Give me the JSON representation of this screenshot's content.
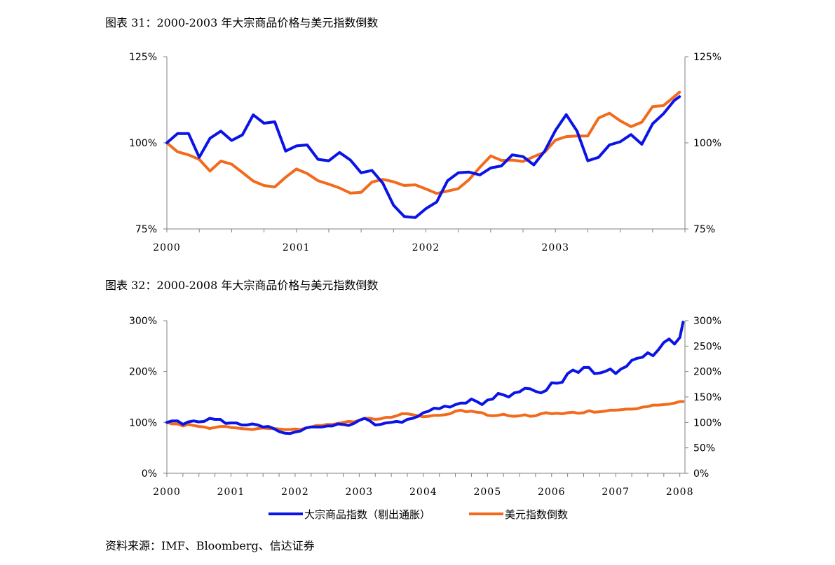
{
  "captions": {
    "chart1": "图表 31：2000-2003 年大宗商品价格与美元指数倒数",
    "chart2": "图表 32：2000-2008 年大宗商品价格与美元指数倒数"
  },
  "source": "资料来源：IMF、Bloomberg、信达证券",
  "colors": {
    "commodity": "#0a14e6",
    "usd": "#f26b1d",
    "axis": "#808080"
  },
  "legend": {
    "commodity": "大宗商品指数（剔出通胀）",
    "usd": "美元指数倒数"
  },
  "chart_data": [
    {
      "type": "line",
      "title": "图表 31：2000-2003 年大宗商品价格与美元指数倒数",
      "x_range": [
        2000,
        2004
      ],
      "x_tick_labels": [
        "2000",
        "2001",
        "2002",
        "2003"
      ],
      "ylim_left": [
        75,
        125
      ],
      "ylim_right": [
        75,
        125
      ],
      "y_tick_labels_left": [
        "75%",
        "100%",
        "125%"
      ],
      "y_tick_labels_right": [
        "75%",
        "100%",
        "125%"
      ],
      "grid": false,
      "series": [
        {
          "name": "大宗商品指数（剔出通胀）",
          "color": "#0a14e6",
          "x": [
            2000.0,
            2000.083,
            2000.167,
            2000.25,
            2000.333,
            2000.417,
            2000.5,
            2000.583,
            2000.667,
            2000.75,
            2000.833,
            2000.917,
            2001.0,
            2001.083,
            2001.167,
            2001.25,
            2001.333,
            2001.417,
            2001.5,
            2001.583,
            2001.667,
            2001.75,
            2001.833,
            2001.917,
            2002.0,
            2002.083,
            2002.167,
            2002.25,
            2002.333,
            2002.417,
            2002.5,
            2002.583,
            2002.667,
            2002.75,
            2002.833,
            2002.917,
            2003.0,
            2003.083,
            2003.167,
            2003.25,
            2003.333,
            2003.417,
            2003.5,
            2003.583,
            2003.667,
            2003.75,
            2003.833,
            2003.917,
            2003.958
          ],
          "values": [
            100.0,
            102.7,
            102.7,
            95.8,
            101.3,
            103.4,
            100.7,
            102.3,
            108.1,
            105.7,
            106.1,
            97.6,
            99.1,
            99.4,
            95.2,
            94.8,
            97.2,
            95.0,
            91.3,
            92.0,
            88.3,
            81.9,
            78.6,
            78.3,
            80.9,
            82.8,
            89.0,
            91.3,
            91.5,
            90.7,
            92.7,
            93.3,
            96.5,
            96.0,
            93.6,
            97.6,
            103.6,
            108.2,
            103.4,
            94.8,
            95.8,
            99.4,
            100.3,
            102.4,
            99.6,
            105.5,
            108.4,
            112.3,
            113.4
          ]
        },
        {
          "name": "美元指数倒数",
          "color": "#f26b1d",
          "x": [
            2000.0,
            2000.083,
            2000.167,
            2000.25,
            2000.333,
            2000.417,
            2000.5,
            2000.583,
            2000.667,
            2000.75,
            2000.833,
            2000.917,
            2001.0,
            2001.083,
            2001.167,
            2001.25,
            2001.333,
            2001.417,
            2001.5,
            2001.583,
            2001.667,
            2001.75,
            2001.833,
            2001.917,
            2002.0,
            2002.083,
            2002.167,
            2002.25,
            2002.333,
            2002.417,
            2002.5,
            2002.583,
            2002.667,
            2002.75,
            2002.833,
            2002.917,
            2003.0,
            2003.083,
            2003.167,
            2003.25,
            2003.333,
            2003.417,
            2003.5,
            2003.583,
            2003.667,
            2003.75,
            2003.833,
            2003.917,
            2003.958
          ],
          "values": [
            100.0,
            97.4,
            96.5,
            95.2,
            91.8,
            94.7,
            93.8,
            91.4,
            88.9,
            87.6,
            87.2,
            90.0,
            92.4,
            91.1,
            89.0,
            88.0,
            86.9,
            85.4,
            85.6,
            88.6,
            89.4,
            88.7,
            87.6,
            87.8,
            86.6,
            85.3,
            86.0,
            86.7,
            89.3,
            92.9,
            96.2,
            94.9,
            95.0,
            94.6,
            96.0,
            97.3,
            100.8,
            101.8,
            102.0,
            102.0,
            107.2,
            108.6,
            106.4,
            104.7,
            106.0,
            110.5,
            110.8,
            113.4,
            114.7
          ]
        }
      ]
    },
    {
      "type": "line",
      "title": "图表 32：2000-2008 年大宗商品价格与美元指数倒数",
      "x_range": [
        2000,
        2008.08
      ],
      "x_tick_labels": [
        "2000",
        "2001",
        "2002",
        "2003",
        "2004",
        "2005",
        "2006",
        "2007",
        "2008"
      ],
      "ylim_left": [
        0,
        300
      ],
      "ylim_right": [
        0,
        300
      ],
      "y_tick_labels_left": [
        "0%",
        "100%",
        "200%",
        "300%"
      ],
      "y_tick_labels_right": [
        "0%",
        "50%",
        "100%",
        "150%",
        "200%",
        "250%",
        "300%"
      ],
      "grid": false,
      "legend_position": "bottom",
      "series": [
        {
          "name": "大宗商品指数（剔出通胀）",
          "color": "#0a14e6",
          "x": [
            2000.0,
            2000.083,
            2000.167,
            2000.25,
            2000.333,
            2000.417,
            2000.5,
            2000.583,
            2000.667,
            2000.75,
            2000.833,
            2000.917,
            2001.0,
            2001.083,
            2001.167,
            2001.25,
            2001.333,
            2001.417,
            2001.5,
            2001.583,
            2001.667,
            2001.75,
            2001.833,
            2001.917,
            2002.0,
            2002.083,
            2002.167,
            2002.25,
            2002.333,
            2002.417,
            2002.5,
            2002.583,
            2002.667,
            2002.75,
            2002.833,
            2002.917,
            2003.0,
            2003.083,
            2003.167,
            2003.25,
            2003.333,
            2003.417,
            2003.5,
            2003.583,
            2003.667,
            2003.75,
            2003.833,
            2003.917,
            2004.0,
            2004.083,
            2004.167,
            2004.25,
            2004.333,
            2004.417,
            2004.5,
            2004.583,
            2004.667,
            2004.75,
            2004.833,
            2004.917,
            2005.0,
            2005.083,
            2005.167,
            2005.25,
            2005.333,
            2005.417,
            2005.5,
            2005.583,
            2005.667,
            2005.75,
            2005.833,
            2005.917,
            2006.0,
            2006.083,
            2006.167,
            2006.25,
            2006.333,
            2006.417,
            2006.5,
            2006.583,
            2006.667,
            2006.75,
            2006.833,
            2006.917,
            2007.0,
            2007.083,
            2007.167,
            2007.25,
            2007.333,
            2007.417,
            2007.5,
            2007.583,
            2007.667,
            2007.75,
            2007.833,
            2007.917,
            2008.0,
            2008.05
          ],
          "values": [
            100,
            103,
            103,
            96,
            101,
            103,
            101,
            102,
            108,
            106,
            106,
            98,
            99,
            99,
            95,
            95,
            97,
            95,
            91,
            92,
            88,
            82,
            79,
            78,
            81,
            83,
            89,
            91,
            91,
            91,
            93,
            93,
            97,
            96,
            94,
            98,
            104,
            108,
            103,
            95,
            96,
            99,
            100,
            102,
            100,
            106,
            108,
            112,
            119,
            122,
            128,
            127,
            132,
            130,
            135,
            138,
            138,
            146,
            141,
            135,
            144,
            146,
            157,
            154,
            150,
            158,
            160,
            167,
            166,
            161,
            158,
            163,
            178,
            177,
            179,
            196,
            203,
            198,
            208,
            208,
            196,
            197,
            200,
            205,
            196,
            205,
            210,
            222,
            226,
            228,
            237,
            231,
            243,
            257,
            264,
            254,
            267,
            297
          ]
        },
        {
          "name": "美元指数倒数",
          "color": "#f26b1d",
          "x": [
            2000.0,
            2000.083,
            2000.167,
            2000.25,
            2000.333,
            2000.417,
            2000.5,
            2000.583,
            2000.667,
            2000.75,
            2000.833,
            2000.917,
            2001.0,
            2001.083,
            2001.167,
            2001.25,
            2001.333,
            2001.417,
            2001.5,
            2001.583,
            2001.667,
            2001.75,
            2001.833,
            2001.917,
            2002.0,
            2002.083,
            2002.167,
            2002.25,
            2002.333,
            2002.417,
            2002.5,
            2002.583,
            2002.667,
            2002.75,
            2002.833,
            2002.917,
            2003.0,
            2003.083,
            2003.167,
            2003.25,
            2003.333,
            2003.417,
            2003.5,
            2003.583,
            2003.667,
            2003.75,
            2003.833,
            2003.917,
            2004.0,
            2004.083,
            2004.167,
            2004.25,
            2004.333,
            2004.417,
            2004.5,
            2004.583,
            2004.667,
            2004.75,
            2004.833,
            2004.917,
            2005.0,
            2005.083,
            2005.167,
            2005.25,
            2005.333,
            2005.417,
            2005.5,
            2005.583,
            2005.667,
            2005.75,
            2005.833,
            2005.917,
            2006.0,
            2006.083,
            2006.167,
            2006.25,
            2006.333,
            2006.417,
            2006.5,
            2006.583,
            2006.667,
            2006.75,
            2006.833,
            2006.917,
            2007.0,
            2007.083,
            2007.167,
            2007.25,
            2007.333,
            2007.417,
            2007.5,
            2007.583,
            2007.667,
            2007.75,
            2007.833,
            2007.917,
            2008.0,
            2008.05
          ],
          "values": [
            100,
            97,
            97,
            93,
            96,
            94,
            92,
            91,
            88,
            90,
            92,
            92,
            90,
            89,
            88,
            87,
            86,
            88,
            89,
            88,
            88,
            87,
            86,
            86,
            87,
            86,
            89,
            91,
            94,
            94,
            96,
            96,
            98,
            100,
            102,
            101,
            104,
            108,
            108,
            106,
            107,
            110,
            110,
            113,
            117,
            117,
            115,
            113,
            111,
            112,
            114,
            114,
            115,
            117,
            122,
            124,
            121,
            122,
            120,
            119,
            114,
            113,
            114,
            116,
            113,
            112,
            113,
            115,
            112,
            113,
            117,
            119,
            117,
            118,
            117,
            119,
            120,
            118,
            119,
            123,
            120,
            121,
            122,
            124,
            124,
            125,
            126,
            126,
            127,
            130,
            131,
            134,
            134,
            135,
            136,
            138,
            141,
            141
          ]
        }
      ]
    }
  ]
}
